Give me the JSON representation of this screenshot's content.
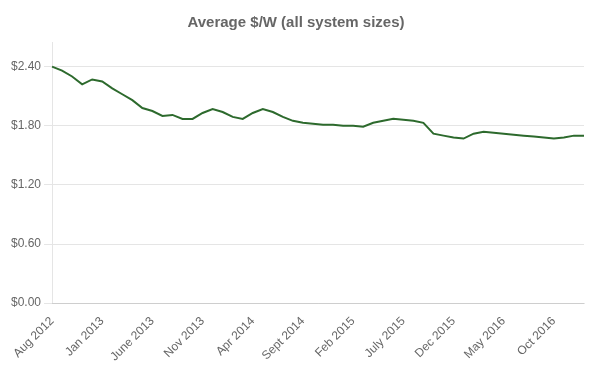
{
  "chart_data": {
    "type": "line",
    "title": "Average $/W (all system sizes)",
    "categories": [
      "Aug 2012",
      null,
      null,
      null,
      null,
      "Jan 2013",
      null,
      null,
      null,
      null,
      "June 2013",
      null,
      null,
      null,
      null,
      "Nov 2013",
      null,
      null,
      null,
      null,
      "Apr 2014",
      null,
      null,
      null,
      null,
      "Sept 2014",
      null,
      null,
      null,
      null,
      "Feb 2015",
      null,
      null,
      null,
      null,
      "July 2015",
      null,
      null,
      null,
      null,
      "Dec 2015",
      null,
      null,
      null,
      null,
      "May 2016",
      null,
      null,
      null,
      null,
      "Oct 2016",
      null,
      null,
      null
    ],
    "values": [
      2.4,
      2.36,
      2.3,
      2.22,
      2.27,
      2.25,
      2.18,
      2.12,
      2.06,
      1.98,
      1.95,
      1.9,
      1.91,
      1.87,
      1.87,
      1.93,
      1.97,
      1.94,
      1.89,
      1.87,
      1.93,
      1.97,
      1.94,
      1.89,
      1.85,
      1.83,
      1.82,
      1.81,
      1.81,
      1.8,
      1.8,
      1.79,
      1.83,
      1.85,
      1.87,
      1.86,
      1.85,
      1.83,
      1.72,
      1.7,
      1.68,
      1.67,
      1.72,
      1.74,
      1.73,
      1.72,
      1.71,
      1.7,
      1.69,
      1.68,
      1.67,
      1.68,
      1.7,
      1.7
    ],
    "color": "#2d6a2d",
    "ylim": [
      0.0,
      2.65
    ],
    "yticks": [
      {
        "value": 0.0,
        "label": "$0.00"
      },
      {
        "value": 0.6,
        "label": "$0.60"
      },
      {
        "value": 1.2,
        "label": "$1.20"
      },
      {
        "value": 1.8,
        "label": "$1.80"
      },
      {
        "value": 2.4,
        "label": "$2.40"
      }
    ],
    "grid": true
  }
}
